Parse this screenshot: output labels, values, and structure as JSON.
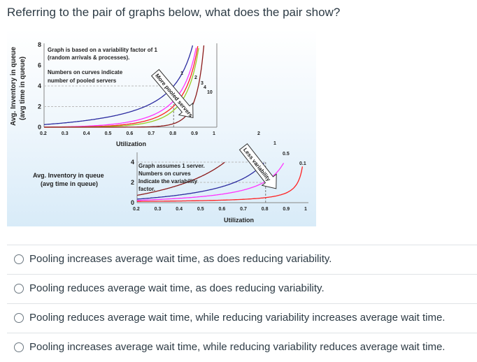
{
  "question": "Referring to the pair of graphs below, what does the pair show?",
  "figure": {
    "top": {
      "ylabel1": "Avg. Inventory in queue",
      "ylabel2": "(avg time in queue)",
      "yticks": [
        "0",
        "2",
        "4",
        "6",
        "8"
      ],
      "xticks": [
        "0.2",
        "0.3",
        "0.4",
        "0.5",
        "0.6",
        "0.7",
        "0.8",
        "0.9",
        "1"
      ],
      "xlabel": "Utilization",
      "note1": "Graph is based on a variability factor of 1",
      "note2": "(random arrivals & processes).",
      "note3": "Numbers on curves indicate",
      "note4": "number of pooled servers",
      "arrow": "More pooled servers",
      "curve_labels": [
        "1",
        "2",
        "3",
        "4",
        "10"
      ],
      "curve_colors": [
        "#2b2ba0",
        "#ff33ff",
        "#ff2222",
        "#99cc22",
        "#8b1a1a"
      ]
    },
    "bottom": {
      "ylabel1": "Avg. Inventory in queue",
      "ylabel2": "(avg time in queue)",
      "yticks": [
        "0",
        "2",
        "4"
      ],
      "xticks": [
        "0.2",
        "0.3",
        "0.4",
        "0.5",
        "0.6",
        "0.7",
        "0.8",
        "0.9",
        "1"
      ],
      "xlabel": "Utilization",
      "note1": "Graph assumes 1 server.",
      "note2": "Numbers on curves",
      "note3": "Indicate the variability",
      "note4": "factor.",
      "arrow": "Less variability",
      "curve_labels": [
        "2",
        "1",
        "0.5",
        "0.1"
      ],
      "curve_colors": [
        "#8b1a1a",
        "#2b2ba0",
        "#ff33ff",
        "#ff2222"
      ]
    }
  },
  "options": [
    "Pooling increases average wait time, as does reducing variability.",
    "Pooling reduces average wait time, as does reducing variability.",
    "Pooling reduces average wait time, while reducing variability increases average wait time.",
    "Pooling increases average wait time, while reducing variability reduces average wait time."
  ]
}
